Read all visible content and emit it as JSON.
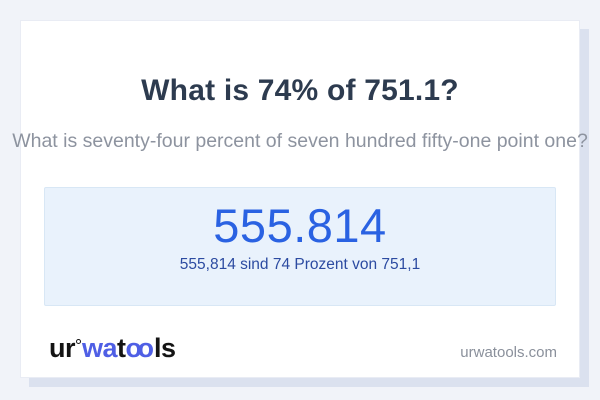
{
  "calculator": {
    "title": "What is 74% of 751.1?",
    "subtitle": "What is seventy-four percent of seven hundred fifty-one point one?",
    "answer": {
      "value": "555.814",
      "description": "555,814 sind 74 Prozent von 751,1"
    }
  },
  "footer": {
    "logo": {
      "part1": "ur",
      "part2": "wa",
      "part3": "t",
      "part4": "oo",
      "part5": "ls",
      "ring_icon": "degree-ring"
    },
    "website": "urwatools.com"
  },
  "colors": {
    "page_bg": "#f1f3f9",
    "card_bg": "#ffffff",
    "card_shadow": "#dbe1ef",
    "title_text": "#2d3b4f",
    "subtitle_text": "#8d939f",
    "answer_box_bg": "#e9f2fc",
    "answer_box_border": "#d8e7f5",
    "answer_value_text": "#2a62e2",
    "answer_description_text": "#2c4ba1",
    "logo_dark": "#141414",
    "logo_blue": "#4f5fe5",
    "website_text": "#8a909b"
  }
}
